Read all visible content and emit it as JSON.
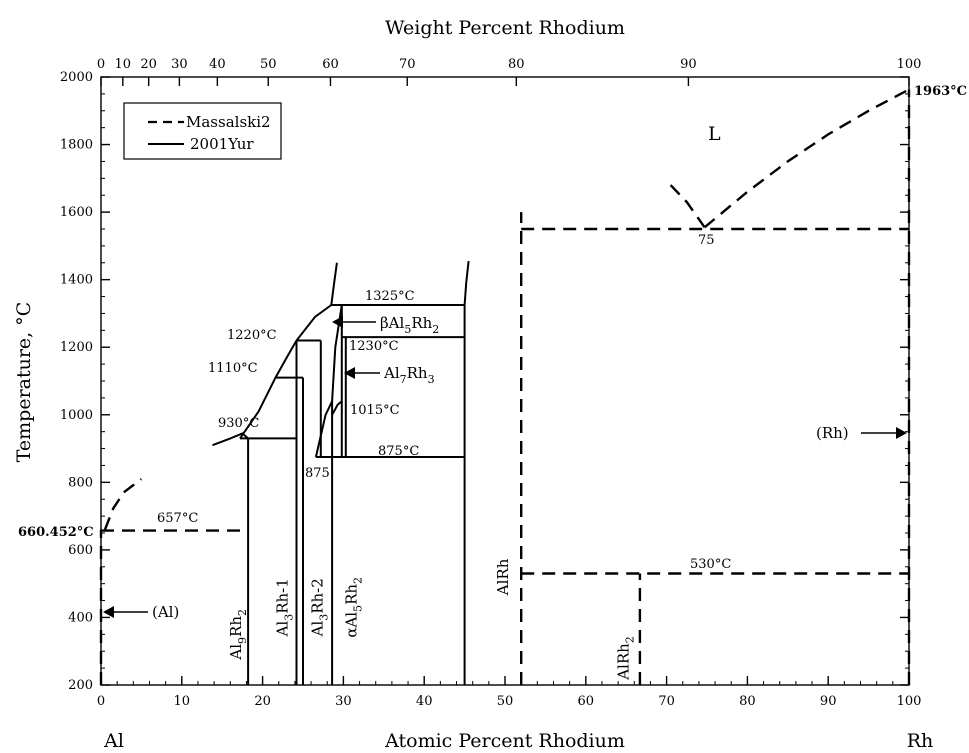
{
  "chart_data": {
    "type": "phase-diagram",
    "title": "Weight Percent Rhodium",
    "xlabel": "Atomic Percent Rhodium",
    "ylabel": "Temperature, °C",
    "xlim": [
      0,
      100
    ],
    "ylim": [
      200,
      2000
    ],
    "x_left_element": "Al",
    "x_right_element": "Rh",
    "x_ticks": [
      "0",
      "10",
      "20",
      "30",
      "40",
      "50",
      "60",
      "70",
      "80",
      "90",
      "100"
    ],
    "y_ticks": [
      "200",
      "400",
      "600",
      "800",
      "1000",
      "1200",
      "1400",
      "1600",
      "1800",
      "2000"
    ],
    "top_axis_ticks": [
      "0",
      "10",
      "20",
      "30",
      "40",
      "50",
      "60",
      "70",
      "80",
      "90",
      "100"
    ],
    "legend": [
      {
        "name": "Massalski2",
        "style": "dashed"
      },
      {
        "name": "2001Yur",
        "style": "solid"
      }
    ],
    "labels": {
      "al_melting": "660.452°C",
      "rh_melting": "1963°C",
      "t657": "657°C",
      "t930": "930°C",
      "t1110": "1110°C",
      "t1220": "1220°C",
      "t1325": "1325°C",
      "t1230": "1230°C",
      "t1015": "1015°C",
      "t875": "875°C",
      "t875b": "875",
      "t530": "530°C",
      "t75": "75",
      "liquid": "L",
      "al_solid": "(Al)",
      "rh_solid": "(Rh)"
    },
    "phases": [
      {
        "name": "Al9Rh2",
        "base": "Al",
        "sub1": "9",
        "mid": "Rh",
        "sub2": "2",
        "x": 17.3,
        "y": 350
      },
      {
        "name": "Al3Rh-1",
        "base": "Al",
        "sub1": "3",
        "mid": "Rh-1",
        "sub2": "",
        "x": 23.1,
        "y": 430
      },
      {
        "name": "Al3Rh-2",
        "base": "Al",
        "sub1": "3",
        "mid": "Rh-2",
        "sub2": "",
        "x": 27.4,
        "y": 430
      },
      {
        "name": "αAl5Rh2",
        "base": "αAl",
        "sub1": "5",
        "mid": "Rh",
        "sub2": "2",
        "x": 31.6,
        "y": 430
      },
      {
        "name": "AlRh",
        "base": "AlRh",
        "sub1": "",
        "mid": "",
        "sub2": "",
        "x": 50.4,
        "y": 520
      },
      {
        "name": "AlRh2",
        "base": "AlRh",
        "sub1": "2",
        "mid": "",
        "sub2": "",
        "x": 65.3,
        "y": 280
      }
    ],
    "arrow_labels": {
      "beta": {
        "pre": "βAl",
        "s1": "5",
        "mid": "Rh",
        "s2": "2"
      },
      "al7rh3": {
        "pre": "Al",
        "s1": "7",
        "mid": "Rh",
        "s2": "3"
      }
    },
    "massalski2": [
      {
        "name": "liquidus_al",
        "points": [
          [
            0.5,
            660
          ],
          [
            1.5,
            722
          ],
          [
            2.8,
            770
          ],
          [
            5.0,
            810
          ]
        ]
      },
      {
        "name": "eutectic_657",
        "points": [
          [
            0,
            657
          ],
          [
            18.2,
            657
          ]
        ]
      },
      {
        "name": "al_axis",
        "points": [
          [
            0,
            200
          ],
          [
            0,
            660
          ]
        ]
      },
      {
        "name": "AlRh_line",
        "points": [
          [
            52,
            200
          ],
          [
            52,
            1600
          ]
        ]
      },
      {
        "name": "eutectic_1550",
        "points": [
          [
            52,
            1550
          ],
          [
            100,
            1550
          ]
        ]
      },
      {
        "name": "liquidus_left",
        "points": [
          [
            70.5,
            1680
          ],
          [
            72.5,
            1630
          ],
          [
            74.7,
            1555
          ]
        ]
      },
      {
        "name": "liquidus_right",
        "points": [
          [
            74.7,
            1555
          ],
          [
            80,
            1660
          ],
          [
            85,
            1750
          ],
          [
            90,
            1830
          ],
          [
            95,
            1900
          ],
          [
            100,
            1963
          ]
        ]
      },
      {
        "name": "rh_axis",
        "points": [
          [
            100,
            200
          ],
          [
            100,
            1963
          ]
        ]
      },
      {
        "name": "AlRh2_line",
        "points": [
          [
            66.7,
            200
          ],
          [
            66.7,
            530
          ]
        ]
      },
      {
        "name": "peritectoid_530",
        "points": [
          [
            52,
            530
          ],
          [
            100,
            530
          ]
        ]
      }
    ],
    "yur2001": [
      {
        "name": "liquidus_a",
        "points": [
          [
            13.8,
            910
          ],
          [
            16,
            930
          ],
          [
            17.5,
            945
          ],
          [
            18.2,
            930
          ]
        ]
      },
      {
        "name": "liquidus_b",
        "points": [
          [
            17.2,
            930
          ],
          [
            19.5,
            1010
          ],
          [
            21.6,
            1110
          ],
          [
            23,
            1170
          ],
          [
            24.2,
            1220
          ],
          [
            26.5,
            1290
          ],
          [
            28.5,
            1325
          ]
        ]
      },
      {
        "name": "liquidus_steep",
        "points": [
          [
            28.5,
            1325
          ],
          [
            28.8,
            1380
          ],
          [
            29.2,
            1450
          ]
        ]
      },
      {
        "name": "liquidus_right",
        "points": [
          [
            45,
            1325
          ],
          [
            45.2,
            1390
          ],
          [
            45.5,
            1455
          ]
        ]
      },
      {
        "name": "h930",
        "points": [
          [
            17.2,
            930
          ],
          [
            24.2,
            930
          ]
        ]
      },
      {
        "name": "h1110",
        "points": [
          [
            21.6,
            1110
          ],
          [
            25,
            1110
          ]
        ]
      },
      {
        "name": "h1220",
        "points": [
          [
            24.2,
            1220
          ],
          [
            27.2,
            1220
          ]
        ]
      },
      {
        "name": "h1325",
        "points": [
          [
            28.5,
            1325
          ],
          [
            45,
            1325
          ]
        ]
      },
      {
        "name": "h1230",
        "points": [
          [
            29.8,
            1230
          ],
          [
            45,
            1230
          ]
        ]
      },
      {
        "name": "h875",
        "points": [
          [
            26.6,
            875
          ],
          [
            45,
            875
          ]
        ]
      },
      {
        "name": "v18.2",
        "points": [
          [
            18.2,
            200
          ],
          [
            18.2,
            930
          ]
        ]
      },
      {
        "name": "v24.2",
        "points": [
          [
            24.2,
            200
          ],
          [
            24.2,
            1220
          ]
        ]
      },
      {
        "name": "v25",
        "points": [
          [
            25,
            200
          ],
          [
            25,
            1110
          ]
        ]
      },
      {
        "name": "v27.2",
        "points": [
          [
            27.2,
            875
          ],
          [
            27.2,
            1220
          ]
        ]
      },
      {
        "name": "v28.6",
        "points": [
          [
            28.6,
            200
          ],
          [
            28.6,
            1040
          ]
        ]
      },
      {
        "name": "v29.8",
        "points": [
          [
            29.8,
            875
          ],
          [
            29.8,
            1325
          ]
        ]
      },
      {
        "name": "v30.3",
        "points": [
          [
            30.3,
            875
          ],
          [
            30.3,
            1230
          ]
        ]
      },
      {
        "name": "v45",
        "points": [
          [
            45,
            200
          ],
          [
            45,
            1325
          ]
        ]
      },
      {
        "name": "loop",
        "points": [
          [
            26.6,
            875
          ],
          [
            27.8,
            1000
          ],
          [
            28.6,
            1040
          ],
          [
            29.0,
            1200
          ],
          [
            29.8,
            1325
          ]
        ]
      },
      {
        "name": "curve1015",
        "points": [
          [
            28.6,
            1000
          ],
          [
            29.3,
            1030
          ],
          [
            29.8,
            1040
          ]
        ]
      }
    ]
  }
}
